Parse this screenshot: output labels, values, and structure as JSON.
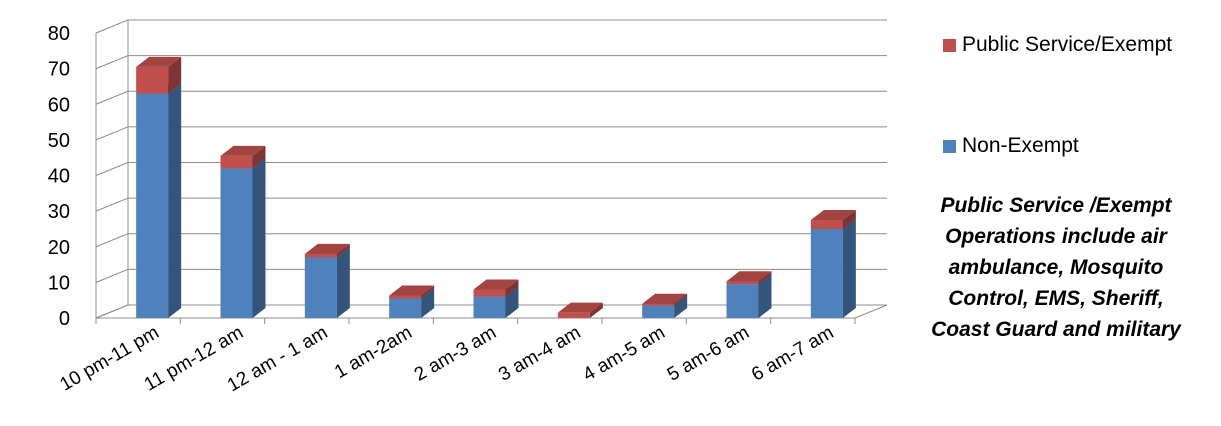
{
  "chart_data": {
    "type": "bar",
    "stacked": true,
    "three_d": true,
    "title": "",
    "xlabel": "",
    "ylabel": "",
    "ylim": [
      0,
      80
    ],
    "yticks": [
      0,
      10,
      20,
      30,
      40,
      50,
      60,
      70,
      80
    ],
    "grid": true,
    "legend_position": "right",
    "categories": [
      "10 pm-11 pm",
      "11 pm-12 am",
      "12 am - 1 am",
      "1 am-2am",
      "2 am-3 am",
      "3 am-4 am",
      "4 am-5 am",
      "5 am-6 am",
      "6 am-7 am"
    ],
    "series": [
      {
        "name": "Non-Exempt",
        "color": "#4f81bd",
        "values": [
          63,
          42,
          17,
          5.5,
          6,
          0,
          3.5,
          9.5,
          25
        ]
      },
      {
        "name": "Public Service/Exempt",
        "color": "#c0504d",
        "values": [
          7.5,
          3.5,
          1,
          0.8,
          2,
          1.5,
          0.5,
          0.8,
          2.5
        ]
      }
    ]
  },
  "legend": {
    "items": [
      {
        "label": "Public Service/Exempt",
        "color": "#c0504d"
      },
      {
        "label": "Non-Exempt",
        "color": "#4f81bd"
      }
    ]
  },
  "note": {
    "lines": [
      "Public Service /Exempt",
      "Operations include air",
      "ambulance, Mosquito",
      "Control, EMS, Sheriff,",
      "Coast Guard and military"
    ]
  }
}
